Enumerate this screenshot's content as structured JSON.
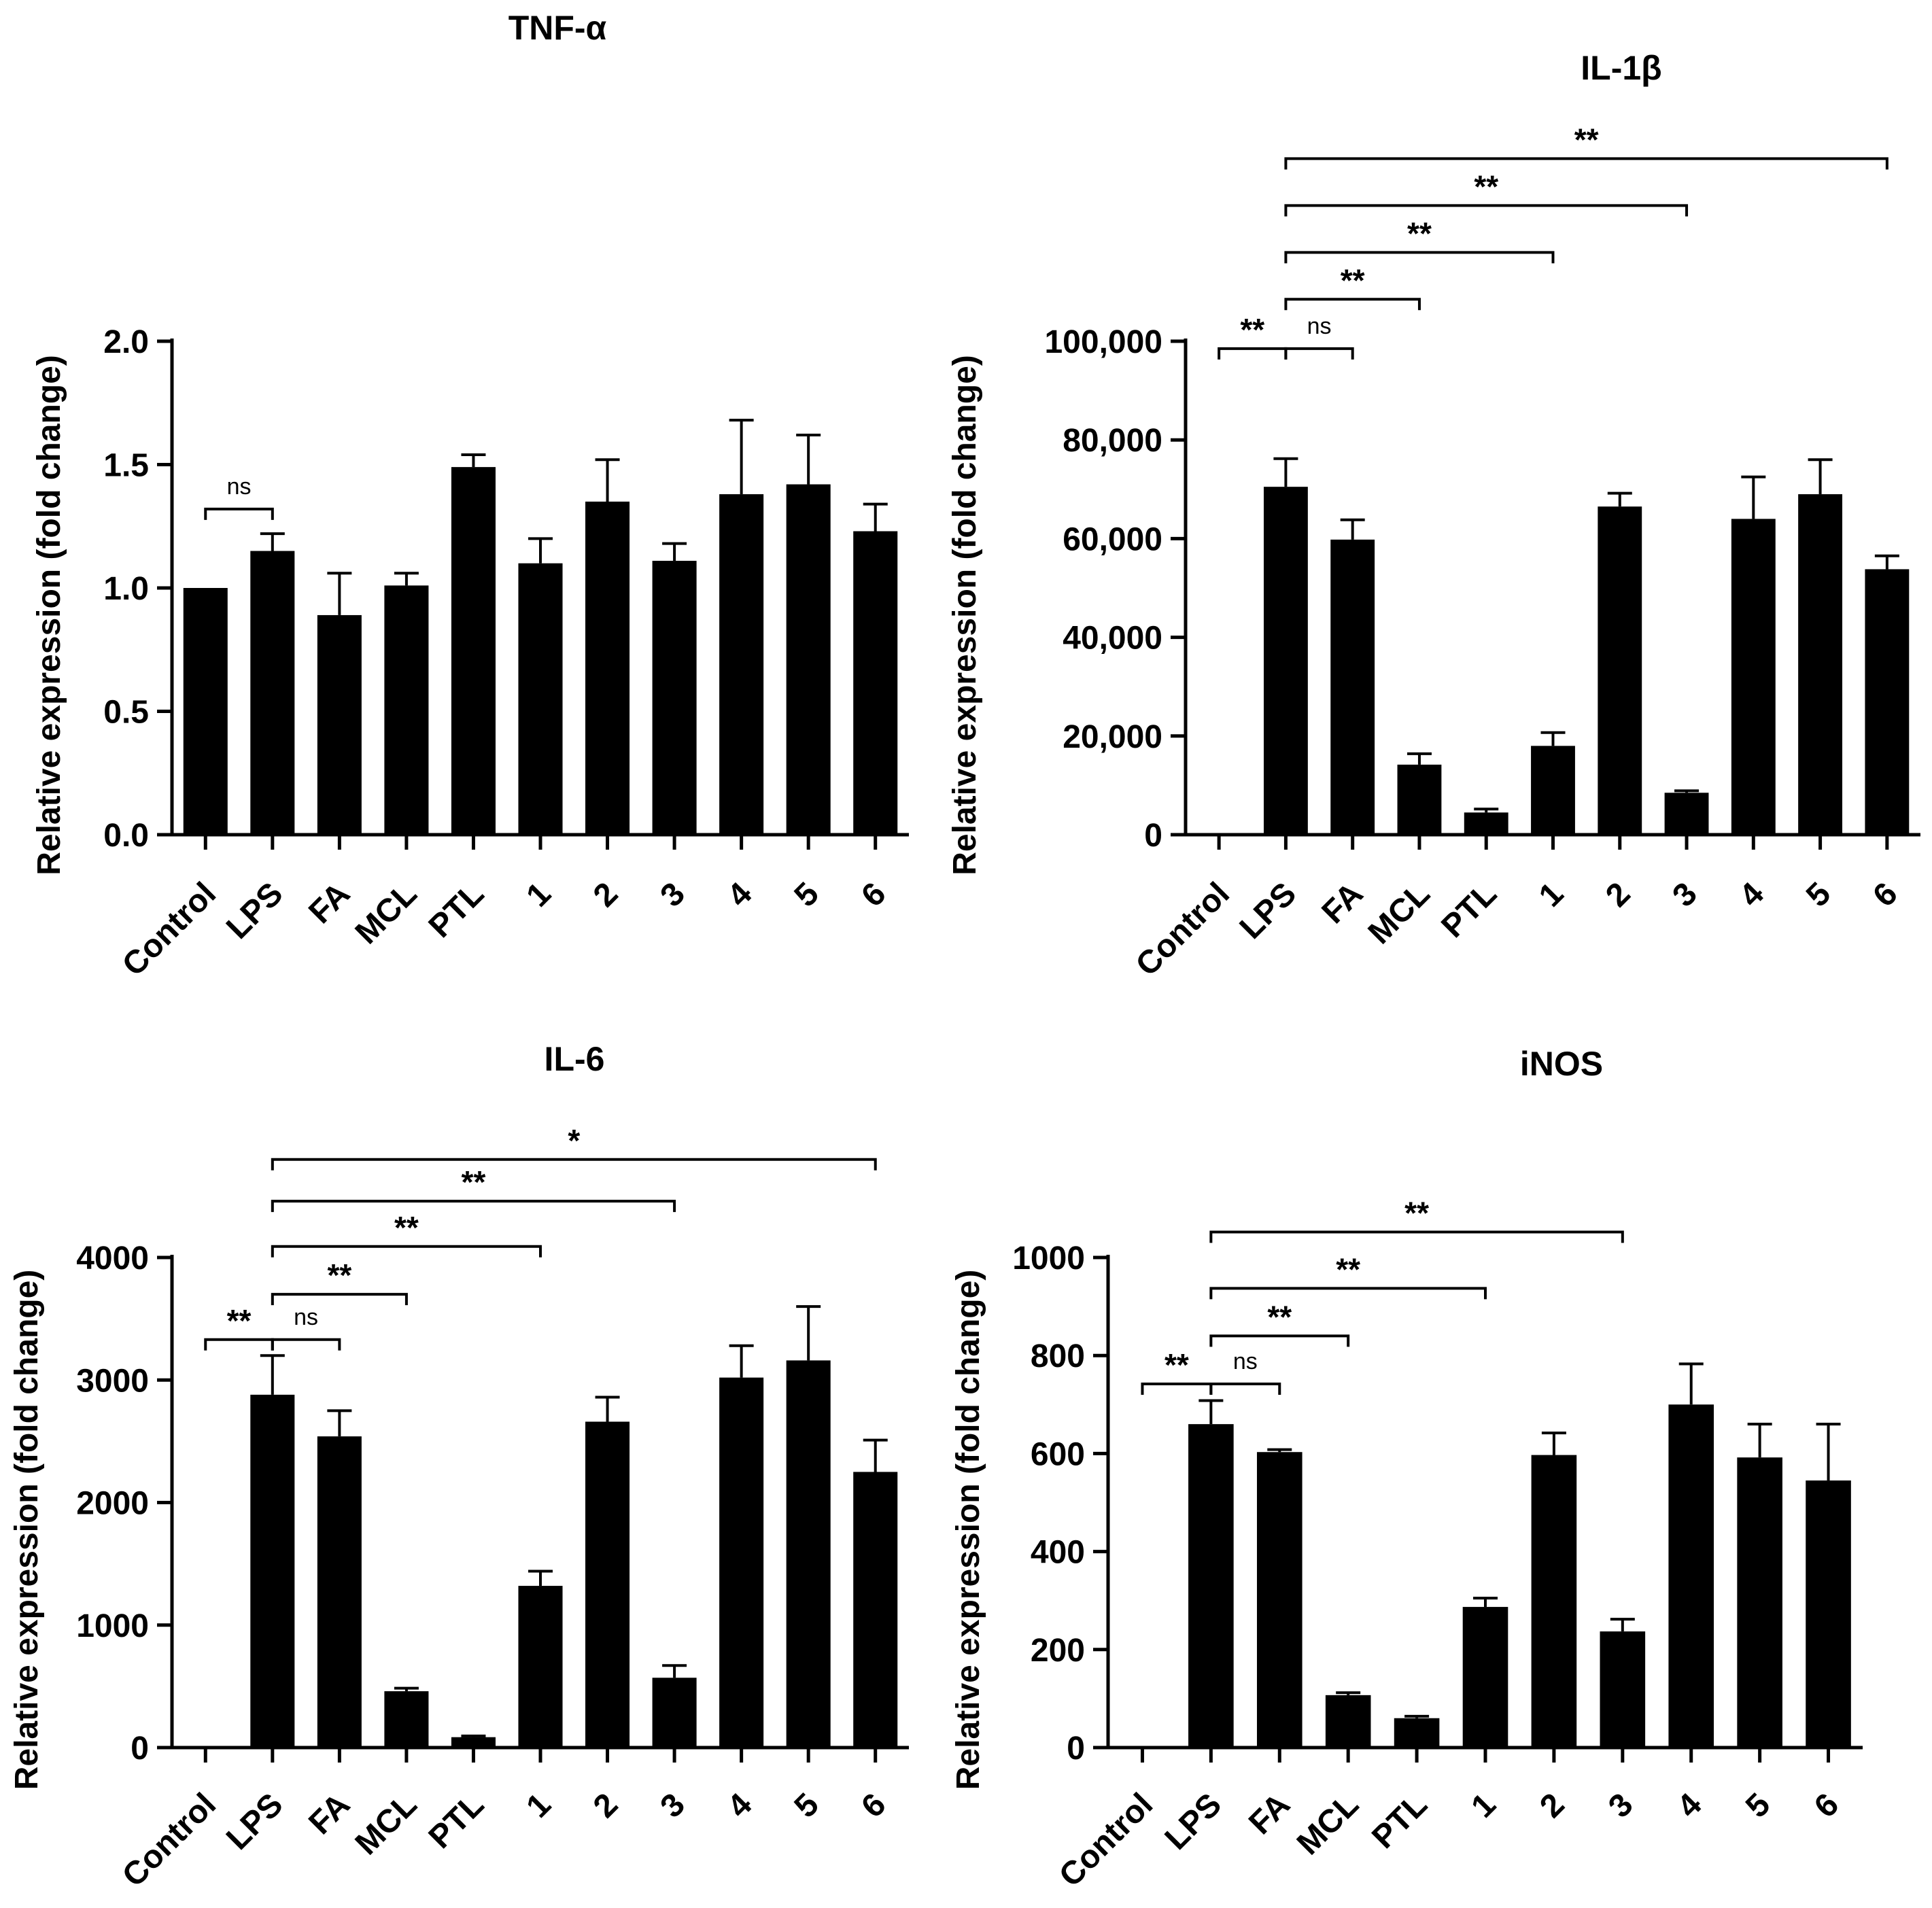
{
  "chart_data": [
    {
      "type": "bar",
      "title": "TNF-α",
      "ylabel": "Relative expression (fold change)",
      "xlabel": "",
      "categories": [
        "Control",
        "LPS",
        "FA",
        "MCL",
        "PTL",
        "1",
        "2",
        "3",
        "4",
        "5",
        "6"
      ],
      "values": [
        1.0,
        1.15,
        0.89,
        1.01,
        1.49,
        1.1,
        1.35,
        1.11,
        1.38,
        1.42,
        1.23
      ],
      "errors": [
        0,
        0.07,
        0.17,
        0.05,
        0.05,
        0.1,
        0.17,
        0.07,
        0.3,
        0.2,
        0.11
      ],
      "ylim": [
        0,
        2.0
      ],
      "yticks": [
        0,
        0.5,
        1.0,
        1.5,
        2.0
      ],
      "ytick_labels": [
        "0.0",
        "0.5",
        "1.0",
        "1.5",
        "2.0"
      ],
      "significance": [
        {
          "from": "Control",
          "to": "LPS",
          "label": "ns",
          "level": 1.32
        }
      ]
    },
    {
      "type": "bar",
      "title": "IL-1β",
      "ylabel": "Relative expression (fold change)",
      "xlabel": "",
      "categories": [
        "Control",
        "LPS",
        "FA",
        "MCL",
        "PTL",
        "1",
        "2",
        "3",
        "4",
        "5",
        "6"
      ],
      "values": [
        0,
        70500,
        59800,
        14200,
        4500,
        18000,
        66500,
        8500,
        64000,
        69000,
        53800
      ],
      "errors": [
        0,
        5700,
        4000,
        2200,
        700,
        2700,
        2700,
        400,
        8500,
        7000,
        2700
      ],
      "ylim": [
        0,
        100000
      ],
      "yticks": [
        0,
        20000,
        40000,
        60000,
        80000,
        100000
      ],
      "ytick_labels": [
        "0",
        "20,000",
        "40,000",
        "60,000",
        "80,000",
        "100,000"
      ],
      "significance": [
        {
          "from": "Control",
          "to": "LPS",
          "label": "**",
          "level": 98500
        },
        {
          "from": "LPS",
          "to": "FA",
          "label": "ns",
          "level": 98500
        },
        {
          "from": "LPS",
          "to": "MCL",
          "label": "**",
          "level": 108500
        },
        {
          "from": "LPS",
          "to": "1",
          "label": "**",
          "level": 118000
        },
        {
          "from": "LPS",
          "to": "3",
          "label": "**",
          "level": 127500
        },
        {
          "from": "LPS",
          "to": "6",
          "label": "**",
          "level": 137000
        }
      ]
    },
    {
      "type": "bar",
      "title": "IL-6",
      "ylabel": "Relative expression (fold change)",
      "xlabel": "",
      "categories": [
        "Control",
        "LPS",
        "FA",
        "MCL",
        "PTL",
        "1",
        "2",
        "3",
        "4",
        "5",
        "6"
      ],
      "values": [
        0,
        2880,
        2540,
        460,
        85,
        1320,
        2660,
        570,
        3020,
        3160,
        2250
      ],
      "errors": [
        0,
        320,
        210,
        25,
        10,
        120,
        200,
        100,
        260,
        440,
        260
      ],
      "ylim": [
        0,
        4000
      ],
      "yticks": [
        0,
        1000,
        2000,
        3000,
        4000
      ],
      "ytick_labels": [
        "0",
        "1000",
        "2000",
        "3000",
        "4000"
      ],
      "significance": [
        {
          "from": "Control",
          "to": "LPS",
          "label": "**",
          "level": 3330
        },
        {
          "from": "LPS",
          "to": "FA",
          "label": "ns",
          "level": 3330
        },
        {
          "from": "LPS",
          "to": "MCL",
          "label": "**",
          "level": 3700
        },
        {
          "from": "LPS",
          "to": "1",
          "label": "**",
          "level": 4090
        },
        {
          "from": "LPS",
          "to": "3",
          "label": "**",
          "level": 4460
        },
        {
          "from": "LPS",
          "to": "6",
          "label": "*",
          "level": 4800
        }
      ]
    },
    {
      "type": "bar",
      "title": "iNOS",
      "ylabel": "Relative expression (fold change)",
      "xlabel": "",
      "categories": [
        "Control",
        "LPS",
        "FA",
        "MCL",
        "PTL",
        "1",
        "2",
        "3",
        "4",
        "5",
        "6"
      ],
      "values": [
        0,
        660,
        603,
        107,
        60,
        287,
        597,
        237,
        700,
        592,
        545
      ],
      "errors": [
        0,
        48,
        5,
        5,
        4,
        18,
        45,
        25,
        83,
        68,
        115
      ],
      "ylim": [
        0,
        1000
      ],
      "yticks": [
        0,
        200,
        400,
        600,
        800,
        1000
      ],
      "ytick_labels": [
        "0",
        "200",
        "400",
        "600",
        "800",
        "1000"
      ],
      "significance": [
        {
          "from": "Control",
          "to": "LPS",
          "label": "**",
          "level": 742
        },
        {
          "from": "LPS",
          "to": "FA",
          "label": "ns",
          "level": 742
        },
        {
          "from": "LPS",
          "to": "MCL",
          "label": "**",
          "level": 840
        },
        {
          "from": "LPS",
          "to": "1",
          "label": "**",
          "level": 937
        },
        {
          "from": "LPS",
          "to": "3",
          "label": "**",
          "level": 1052
        }
      ]
    }
  ]
}
